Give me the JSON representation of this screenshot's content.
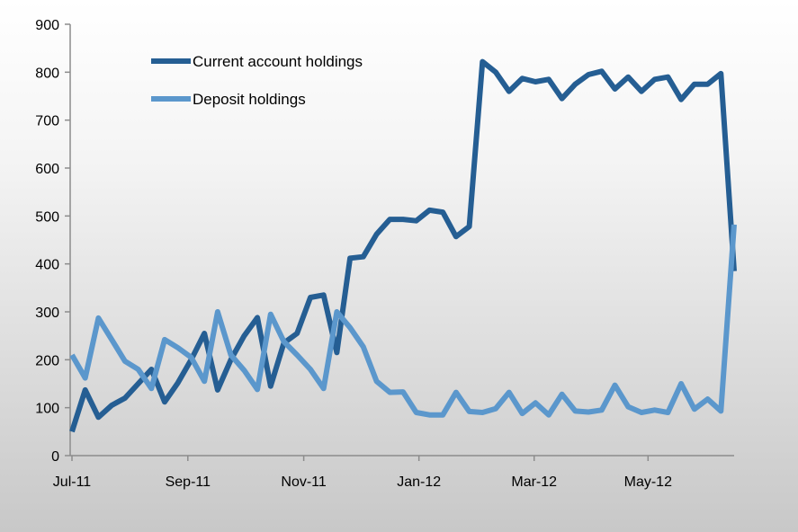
{
  "chart_data": {
    "type": "line",
    "title": "",
    "xlabel": "",
    "ylabel": "",
    "ylim": [
      0,
      900
    ],
    "yticks": [
      "0",
      "100",
      "200",
      "300",
      "400",
      "500",
      "600",
      "700",
      "800",
      "900"
    ],
    "xtick_labels": [
      {
        "label": "Jul-11",
        "index": 0
      },
      {
        "label": "Sep-11",
        "index": 8.75
      },
      {
        "label": "Nov-11",
        "index": 17.5
      },
      {
        "label": "Jan-12",
        "index": 26.2
      },
      {
        "label": "Mar-12",
        "index": 34.9
      },
      {
        "label": "May-12",
        "index": 43.5
      }
    ],
    "grid": false,
    "legend_position": "top-left",
    "series": [
      {
        "name": "Current account holdings",
        "color": "#255e93",
        "values": [
          50,
          137,
          80,
          105,
          120,
          150,
          180,
          112,
          152,
          200,
          255,
          137,
          200,
          250,
          288,
          145,
          235,
          255,
          330,
          335,
          215,
          412,
          415,
          462,
          493,
          493,
          490,
          512,
          508,
          457,
          478,
          822,
          800,
          760,
          787,
          780,
          785,
          745,
          775,
          795,
          802,
          765,
          790,
          760,
          785,
          790,
          743,
          775,
          775,
          797,
          385
        ]
      },
      {
        "name": "Deposit holdings",
        "color": "#5b97cc",
        "values": [
          210,
          162,
          287,
          242,
          197,
          180,
          140,
          242,
          225,
          205,
          155,
          300,
          210,
          178,
          138,
          295,
          238,
          210,
          180,
          140,
          300,
          267,
          227,
          155,
          132,
          133,
          90,
          85,
          85,
          132,
          92,
          90,
          98,
          132,
          88,
          110,
          85,
          128,
          93,
          91,
          95,
          147,
          102,
          90,
          95,
          90,
          150,
          97,
          118,
          93,
          482
        ]
      }
    ]
  }
}
